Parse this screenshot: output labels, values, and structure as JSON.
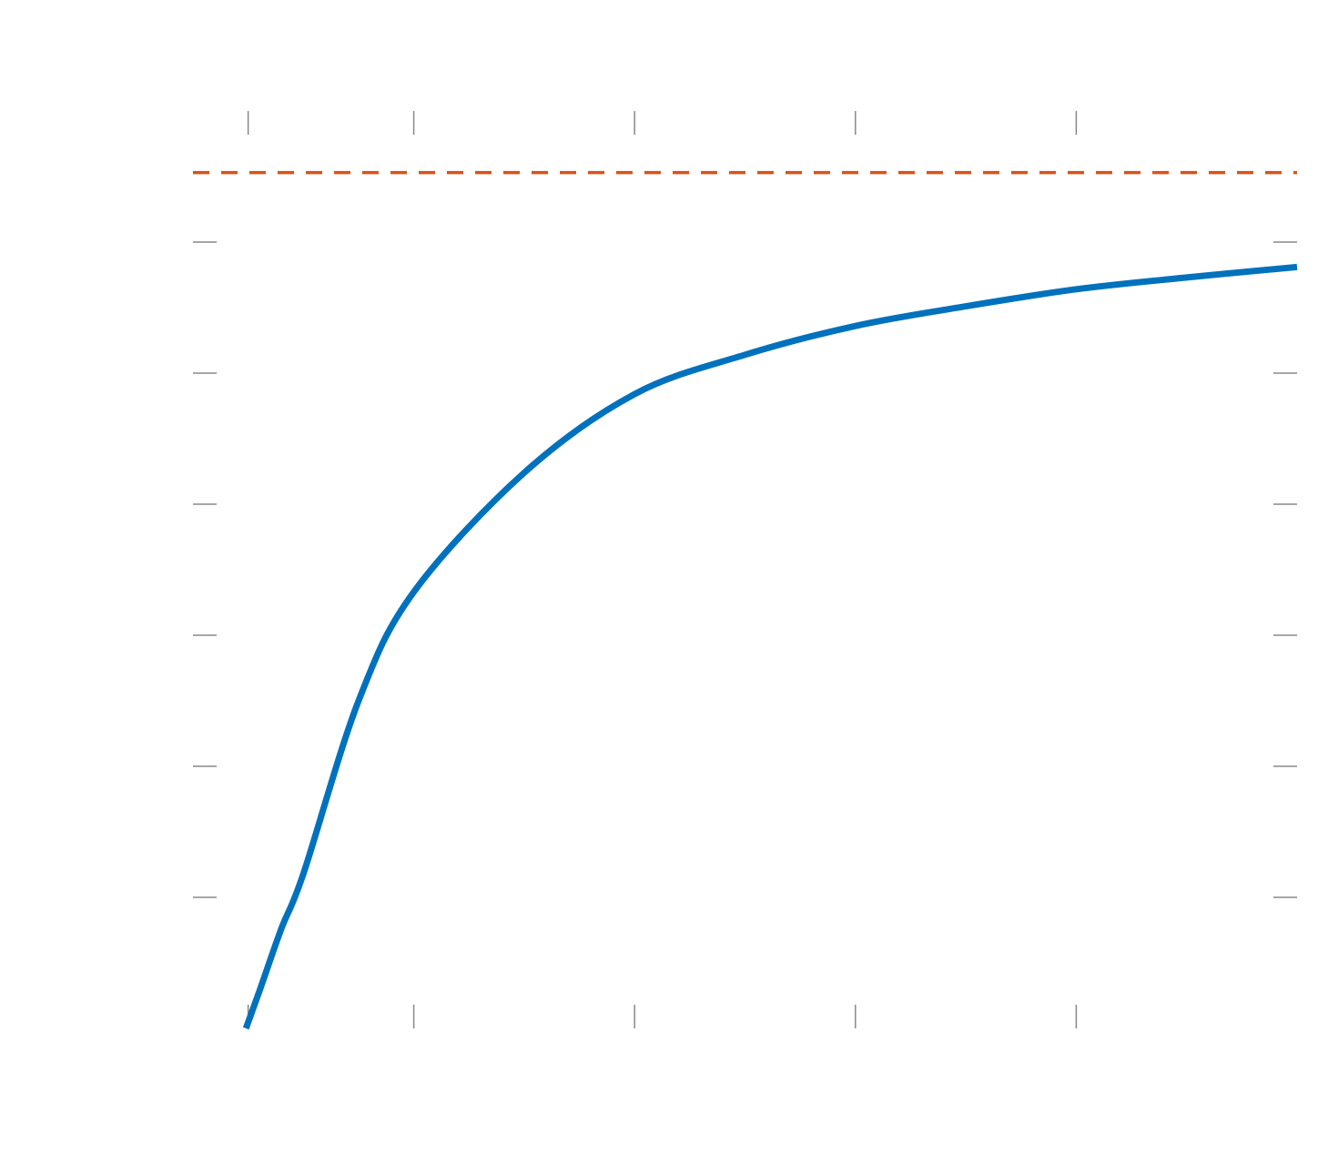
{
  "chart_data": {
    "type": "line",
    "x": [
      0.24,
      0.3,
      0.4,
      0.5,
      0.75,
      1,
      1.5,
      2,
      2.5,
      3,
      3.5,
      4,
      4.5,
      5
    ],
    "series": [
      {
        "color": "#0072bd",
        "values": [
          0,
          0.28,
          0.76,
          1.18,
          2.5,
          3.33,
          4.24,
          4.84,
          5.14,
          5.36,
          5.51,
          5.64,
          5.73,
          5.81
        ]
      }
    ],
    "reference_line": {
      "value": 6.53,
      "color": "#d95319",
      "style": "dashed"
    },
    "xlim": [
      0,
      5
    ],
    "ylim": [
      0,
      7
    ],
    "xticks": [
      0.25,
      1,
      2,
      3,
      4
    ],
    "yticks": [
      1,
      2,
      3,
      4,
      5,
      6
    ],
    "grid": false
  }
}
